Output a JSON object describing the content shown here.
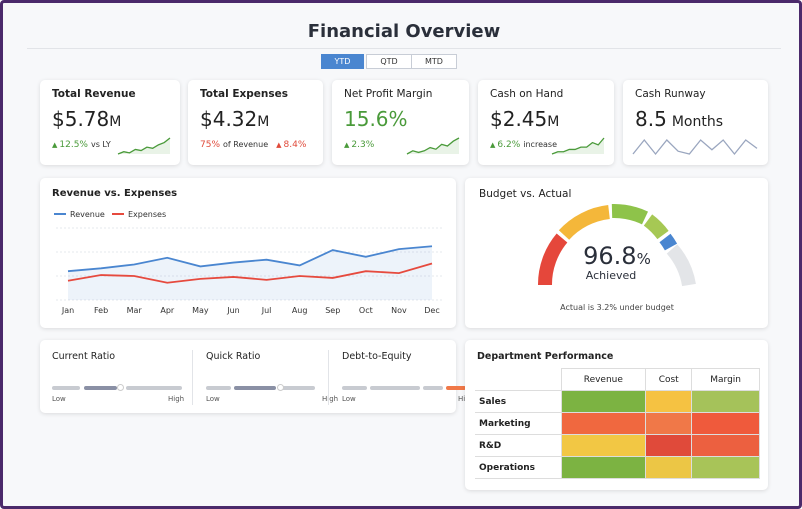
{
  "header": {
    "title": "Financial Overview",
    "tabs": [
      "YTD",
      "QTD",
      "MTD"
    ],
    "active_tab": 0
  },
  "kpis": [
    {
      "title": "Total Revenue",
      "value": "$5.78",
      "suffix": "M",
      "change": "12.5%",
      "note": "vs LY",
      "trend": "up",
      "color": "#4a9a3a",
      "spark": [
        3,
        4,
        3.5,
        5,
        4.5,
        6,
        5.5,
        7,
        8,
        10
      ]
    },
    {
      "title": "Total Expenses",
      "value": "$4.32",
      "suffix": "M",
      "share": "75%",
      "note": "of Revenue",
      "change": "8.4%",
      "trend": "up-bad",
      "color": "#e04a3a"
    },
    {
      "title": "Net Profit Margin",
      "value": "15.6%",
      "change": "2.3%",
      "trend": "up",
      "color": "#4a9a3a",
      "value_color": "#4a9a3a",
      "spark": [
        2,
        3,
        2.5,
        3,
        4,
        3.5,
        5,
        4.5,
        6,
        7
      ]
    },
    {
      "title": "Cash on Hand",
      "value": "$2.45",
      "suffix": "M",
      "change": "6.2%",
      "note": "increase",
      "trend": "up",
      "color": "#4a9a3a",
      "spark": [
        2,
        3,
        3,
        4,
        4,
        5,
        5,
        7,
        6,
        9
      ]
    },
    {
      "title": "Cash Runway",
      "value": "8.5",
      "suffix": "Months",
      "color": "#9aa6bf",
      "spark": [
        5,
        6,
        5,
        6,
        5.2,
        5,
        6,
        5.3,
        6,
        5,
        6,
        5.4
      ]
    }
  ],
  "chart_data": {
    "type": "line",
    "title": "Revenue vs. Expenses",
    "categories": [
      "Jan",
      "Feb",
      "Mar",
      "Apr",
      "May",
      "Jun",
      "Jul",
      "Aug",
      "Sep",
      "Oct",
      "Nov",
      "Dec"
    ],
    "series": [
      {
        "name": "Revenue",
        "color": "#4a86d0",
        "values": [
          30,
          33,
          37,
          44,
          35,
          39,
          42,
          36,
          52,
          45,
          53,
          56
        ]
      },
      {
        "name": "Expenses",
        "color": "#e64a3e",
        "values": [
          20,
          26,
          25,
          18,
          22,
          24,
          21,
          25,
          23,
          30,
          28,
          38
        ]
      }
    ],
    "ylim": [
      0,
      75
    ]
  },
  "gauge": {
    "title": "Budget vs. Actual",
    "value": 96.8,
    "value_label": "96.8",
    "unit": "%",
    "status": "Achieved",
    "note": "Actual is 3.2% under budget"
  },
  "ratios": [
    {
      "title": "Current Ratio",
      "low": "Low",
      "high": "High"
    },
    {
      "title": "Quick Ratio",
      "low": "Low",
      "high": "High"
    },
    {
      "title": "Debt-to-Equity",
      "low": "Low",
      "high": "High"
    }
  ],
  "department": {
    "title": "Department Performance",
    "columns": [
      "Revenue",
      "Cost",
      "Margin"
    ],
    "rows": [
      {
        "name": "Sales",
        "colors": [
          "#7cb342",
          "#f5c242",
          "#a5c25a"
        ]
      },
      {
        "name": "Marketing",
        "colors": [
          "#f0683f",
          "#f07848",
          "#ef5a3c"
        ]
      },
      {
        "name": "R&D",
        "colors": [
          "#f2c744",
          "#e04a3a",
          "#ec6040"
        ]
      },
      {
        "name": "Operations",
        "colors": [
          "#7cb342",
          "#ecc645",
          "#a8c458"
        ]
      }
    ]
  }
}
